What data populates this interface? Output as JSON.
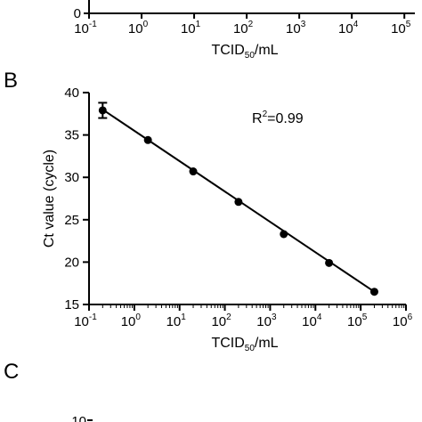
{
  "panels": {
    "B": "B",
    "C": "C"
  },
  "top_fragment": {
    "y_tick": "0",
    "x_ticks": [
      {
        "base": "10",
        "exp": "-1"
      },
      {
        "base": "10",
        "exp": "0"
      },
      {
        "base": "10",
        "exp": "1"
      },
      {
        "base": "10",
        "exp": "2"
      },
      {
        "base": "10",
        "exp": "3"
      },
      {
        "base": "10",
        "exp": "4"
      },
      {
        "base": "10",
        "exp": "5"
      }
    ],
    "xlabel": {
      "main": "TCID",
      "sub": "50",
      "unit": "/mL"
    }
  },
  "bottom_fragment": {
    "y_tick_partial": "10"
  },
  "chart_data": {
    "type": "scatter",
    "title": "",
    "xlabel": "TCID50/mL",
    "ylabel": "Ct value (cycle)",
    "x_scale": "log10",
    "xlim": [
      0.1,
      1000000
    ],
    "ylim": [
      15,
      40
    ],
    "y_ticks": [
      "15",
      "20",
      "25",
      "30",
      "35",
      "40"
    ],
    "x_ticks": [
      {
        "base": "10",
        "exp": "-1"
      },
      {
        "base": "10",
        "exp": "0"
      },
      {
        "base": "10",
        "exp": "1"
      },
      {
        "base": "10",
        "exp": "2"
      },
      {
        "base": "10",
        "exp": "3"
      },
      {
        "base": "10",
        "exp": "4"
      },
      {
        "base": "10",
        "exp": "5"
      },
      {
        "base": "10",
        "exp": "6"
      }
    ],
    "series": [
      {
        "x": [
          0.2,
          2,
          20,
          200,
          2000,
          20000,
          200000
        ],
        "y": [
          37.9,
          34.4,
          30.7,
          27.1,
          23.3,
          19.9,
          16.5
        ],
        "error": [
          0.9,
          0,
          0,
          0,
          0,
          0,
          0
        ]
      }
    ],
    "fit_line": {
      "x": [
        0.2,
        200000
      ],
      "y": [
        38.0,
        16.5
      ]
    },
    "annotation": {
      "base": "R",
      "sup": "2",
      "rest": "=0.99"
    },
    "grid": false,
    "legend": "none"
  }
}
